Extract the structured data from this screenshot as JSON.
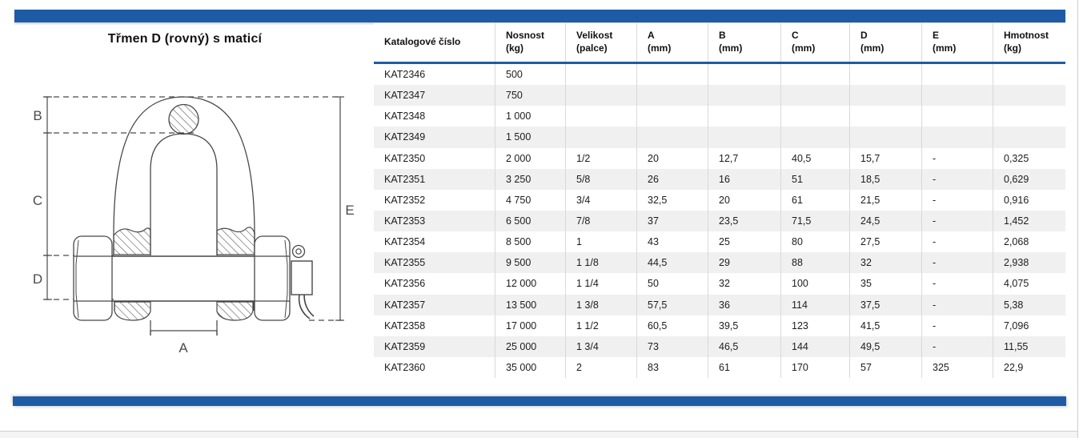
{
  "page": {
    "title": "Třmen D (rovný) s maticí",
    "accent_color": "#1e5ba6",
    "row_alt_color": "#f0f0f0"
  },
  "diagram": {
    "description": "technical-drawing-d-shackle-with-bolt-nut-cotter-pin",
    "labels": {
      "a": "A",
      "b": "B",
      "c": "C",
      "d": "D",
      "e": "E"
    }
  },
  "table": {
    "columns": [
      {
        "title": "Katalogové číslo",
        "unit": ""
      },
      {
        "title": "Nosnost",
        "unit": "(kg)"
      },
      {
        "title": "Velikost",
        "unit": "(palce)"
      },
      {
        "title": "A",
        "unit": "(mm)"
      },
      {
        "title": "B",
        "unit": "(mm)"
      },
      {
        "title": "C",
        "unit": "(mm)"
      },
      {
        "title": "D",
        "unit": "(mm)"
      },
      {
        "title": "E",
        "unit": "(mm)"
      },
      {
        "title": "Hmotnost",
        "unit": "(kg)"
      }
    ],
    "rows": [
      [
        "KAT2346",
        "500",
        "",
        "",
        "",
        "",
        "",
        "",
        ""
      ],
      [
        "KAT2347",
        "750",
        "",
        "",
        "",
        "",
        "",
        "",
        ""
      ],
      [
        "KAT2348",
        "1 000",
        "",
        "",
        "",
        "",
        "",
        "",
        ""
      ],
      [
        "KAT2349",
        "1 500",
        "",
        "",
        "",
        "",
        "",
        "",
        ""
      ],
      [
        "KAT2350",
        "2 000",
        "1/2",
        "20",
        "12,7",
        "40,5",
        "15,7",
        "-",
        "0,325"
      ],
      [
        "KAT2351",
        "3 250",
        "5/8",
        "26",
        "16",
        "51",
        "18,5",
        "-",
        "0,629"
      ],
      [
        "KAT2352",
        "4 750",
        "3/4",
        "32,5",
        "20",
        "61",
        "21,5",
        "-",
        "0,916"
      ],
      [
        "KAT2353",
        "6 500",
        "7/8",
        "37",
        "23,5",
        "71,5",
        "24,5",
        "-",
        "1,452"
      ],
      [
        "KAT2354",
        "8 500",
        "1",
        "43",
        "25",
        "80",
        "27,5",
        "-",
        "2,068"
      ],
      [
        "KAT2355",
        "9 500",
        "1 1/8",
        "44,5",
        "29",
        "88",
        "32",
        "-",
        "2,938"
      ],
      [
        "KAT2356",
        "12 000",
        "1 1/4",
        "50",
        "32",
        "100",
        "35",
        "-",
        "4,075"
      ],
      [
        "KAT2357",
        "13 500",
        "1 3/8",
        "57,5",
        "36",
        "114",
        "37,5",
        "-",
        "5,38"
      ],
      [
        "KAT2358",
        "17 000",
        "1 1/2",
        "60,5",
        "39,5",
        "123",
        "41,5",
        "-",
        "7,096"
      ],
      [
        "KAT2359",
        "25 000",
        "1 3/4",
        "73",
        "46,5",
        "144",
        "49,5",
        "-",
        "11,55"
      ],
      [
        "KAT2360",
        "35 000",
        "2",
        "83",
        "61",
        "170",
        "57",
        "325",
        "22,9"
      ]
    ]
  }
}
